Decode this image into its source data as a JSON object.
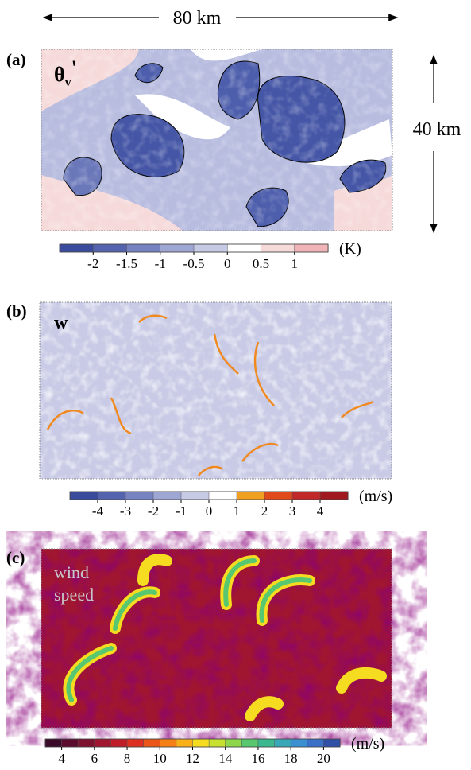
{
  "scale": {
    "width_label": "80 km",
    "height_label": "40 km"
  },
  "panels": [
    {
      "tag": "(a)",
      "field": {
        "symbol": "θ",
        "subscript": "v",
        "suffix": "'"
      },
      "colorbar": {
        "lim": [
          -2.5,
          1.5
        ],
        "ticks": [
          -2,
          -1.5,
          -1,
          -0.5,
          0,
          0.5,
          1
        ],
        "unit": "(K)",
        "colors": [
          "#3b4b9c",
          "#5363ad",
          "#7683c0",
          "#9ea6d3",
          "#c7cae5",
          "#ffffff",
          "#f6dada",
          "#f0b4b8"
        ]
      }
    },
    {
      "tag": "(b)",
      "field": {
        "symbol": "w"
      },
      "colorbar": {
        "lim": [
          -5,
          5
        ],
        "ticks": [
          -4,
          -3,
          -2,
          -1,
          0,
          1,
          2,
          3,
          4
        ],
        "unit": "(m/s)",
        "colors": [
          "#3b4b9c",
          "#5363ad",
          "#7683c0",
          "#9ea6d3",
          "#c7cae5",
          "#ffffff",
          "#f0a020",
          "#e04a1a",
          "#c0282a",
          "#a0191f"
        ]
      }
    },
    {
      "tag": "(c)",
      "field": {
        "lines": [
          "wind",
          "speed"
        ]
      },
      "colorbar": {
        "lim": [
          3,
          21
        ],
        "ticks": [
          4,
          6,
          8,
          10,
          12,
          14,
          16,
          18,
          20
        ],
        "unit": "(m/s)",
        "colors": [
          "#3a0a2a",
          "#5c0c2e",
          "#7e1030",
          "#a01530",
          "#c01d2a",
          "#dc3020",
          "#ec5518",
          "#f58015",
          "#fab018",
          "#f5dc20",
          "#c8e030",
          "#8ed64a",
          "#58c870",
          "#3cb890",
          "#38a8b8",
          "#3a90d0",
          "#3a70c8",
          "#3050a8"
        ]
      }
    }
  ]
}
